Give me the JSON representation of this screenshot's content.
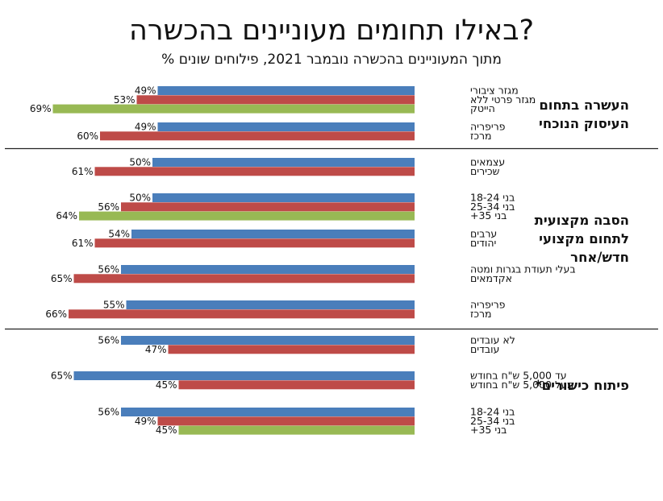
{
  "chart_data": {
    "type": "bar",
    "orientation": "horizontal",
    "direction": "right-to-left",
    "title": "באילו תחומים מעוניינים בהכשרה?",
    "subtitle": "% מתוך המעוניינים בהכשרה נובמבר 2021, פילוחים שונים",
    "value_unit": "%",
    "colors": {
      "blue": "#4a7ebb",
      "red": "#be4b48",
      "green": "#98b954"
    },
    "sections": [
      {
        "label_lines": [
          "העשרה בתחום",
          "העיסוק הנוכחי"
        ],
        "groups": [
          {
            "bars": [
              {
                "label": "מגזר ציבורי",
                "value": 49,
                "color": "blue"
              },
              {
                "label": "מגזר פרטי ללא",
                "value": 53,
                "color": "red"
              },
              {
                "label": "הייטק",
                "value": 69,
                "color": "green"
              }
            ]
          },
          {
            "bars": [
              {
                "label": "פריפריה",
                "value": 49,
                "color": "blue"
              },
              {
                "label": "מרכז",
                "value": 60,
                "color": "red"
              }
            ]
          }
        ]
      },
      {
        "label_lines": [
          "הסבה מקצועית",
          "לתחום מקצועי",
          "חדש/אחר"
        ],
        "groups": [
          {
            "bars": [
              {
                "label": "עצמאים",
                "value": 50,
                "color": "blue"
              },
              {
                "label": "שכירים",
                "value": 61,
                "color": "red"
              }
            ]
          },
          {
            "bars": [
              {
                "label": "בני 18-24",
                "value": 50,
                "color": "blue"
              },
              {
                "label": "בני 25-34",
                "value": 56,
                "color": "red"
              },
              {
                "label": "בני 35+",
                "value": 64,
                "color": "green"
              }
            ]
          },
          {
            "bars": [
              {
                "label": "ערבים",
                "value": 54,
                "color": "blue"
              },
              {
                "label": "יהודים",
                "value": 61,
                "color": "red"
              }
            ]
          },
          {
            "bars": [
              {
                "label": "בעלי תעודת בגרות ומטה",
                "value": 56,
                "color": "blue"
              },
              {
                "label": "אקדמאים",
                "value": 65,
                "color": "red"
              }
            ]
          },
          {
            "bars": [
              {
                "label": "פריפריה",
                "value": 55,
                "color": "blue"
              },
              {
                "label": "מרכז",
                "value": 66,
                "color": "red"
              }
            ]
          }
        ]
      },
      {
        "label_lines": [
          "פיתוח כישורים*"
        ],
        "groups": [
          {
            "bars": [
              {
                "label": "לא עובדים",
                "value": 56,
                "color": "blue"
              },
              {
                "label": "עובדים",
                "value": 47,
                "color": "red"
              }
            ]
          },
          {
            "bars": [
              {
                "label": "עד 5,000 ש\"ח בחודש",
                "value": 65,
                "color": "blue"
              },
              {
                "label": "מעל 5,000 ש\"ח בחודש",
                "value": 45,
                "color": "red"
              }
            ]
          },
          {
            "bars": [
              {
                "label": "בני 18-24",
                "value": 56,
                "color": "blue"
              },
              {
                "label": "בני 25-34",
                "value": 49,
                "color": "red"
              },
              {
                "label": "בני 35+",
                "value": 45,
                "color": "green"
              }
            ]
          }
        ]
      }
    ]
  }
}
